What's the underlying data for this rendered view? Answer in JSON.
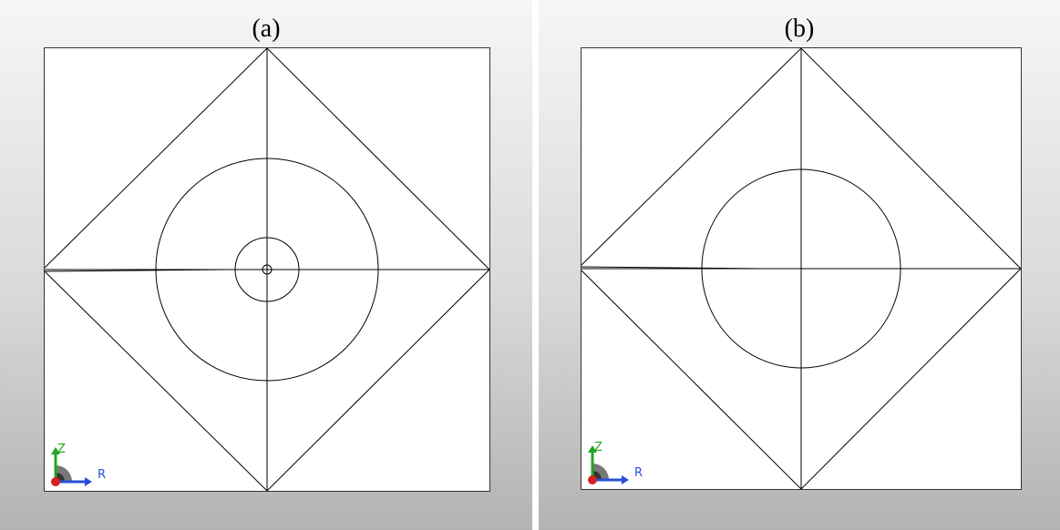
{
  "panels": [
    {
      "id": "a",
      "caption": "(a)"
    },
    {
      "id": "b",
      "caption": "(b)"
    }
  ],
  "axes": {
    "vertical_label": "Z",
    "horizontal_label": "R"
  },
  "colors": {
    "mesh_line": "#000000",
    "axis_z": "#22a522",
    "axis_r": "#2a4fd6",
    "axis_origin": "#d42020",
    "rotation_arc": "#777777"
  }
}
